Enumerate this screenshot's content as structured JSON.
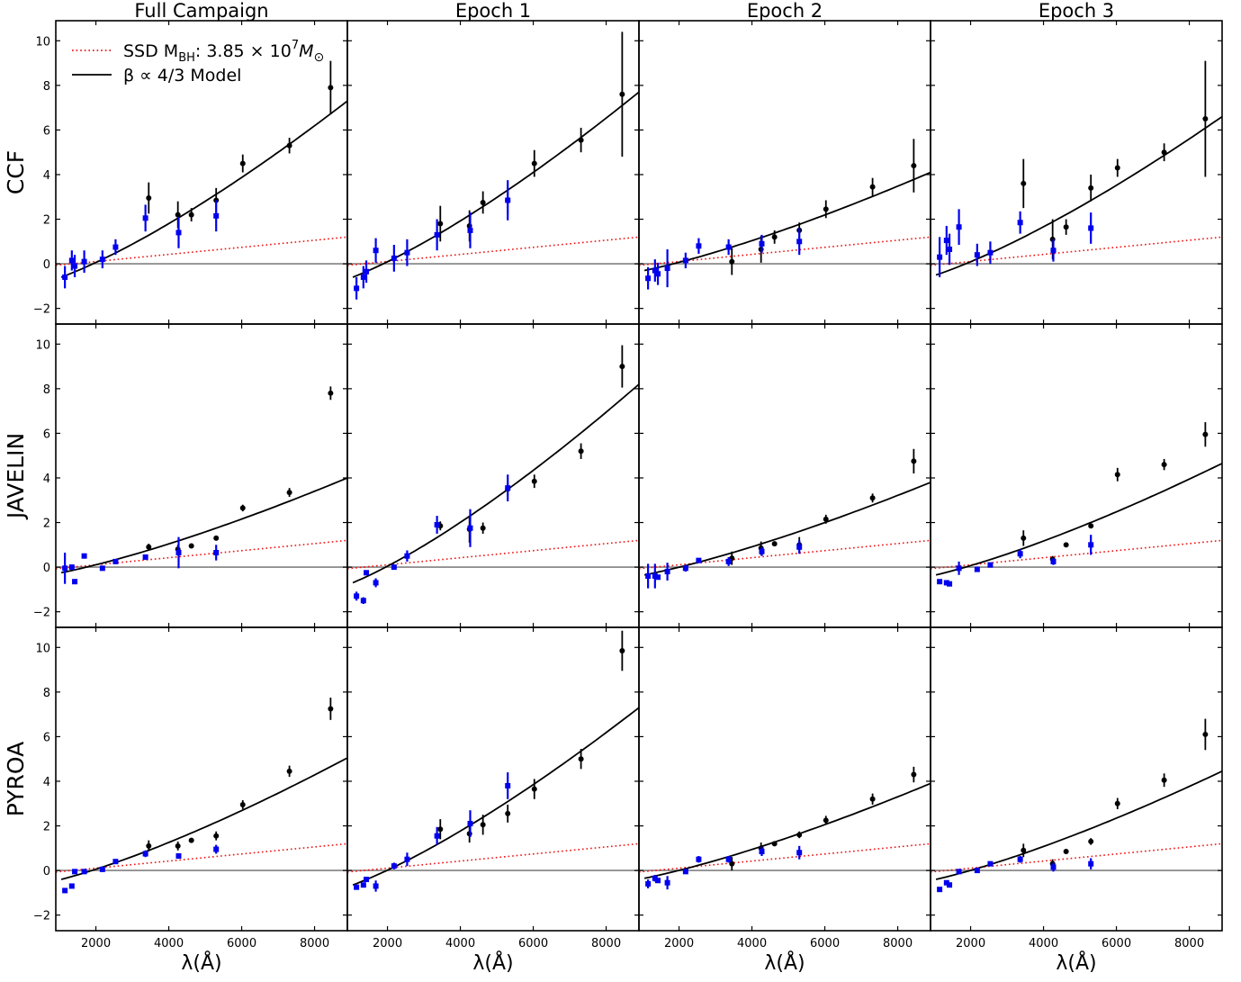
{
  "chart_data": {
    "type": "scatter",
    "columns": [
      "Full Campaign",
      "Epoch 1",
      "Epoch 2",
      "Epoch 3"
    ],
    "rows": [
      "CCF",
      "JAVELIN",
      "PYROA"
    ],
    "xlabel": "λ(Å)",
    "xlim": [
      900,
      8900
    ],
    "ylim": [
      -2.7,
      10.9
    ],
    "xticks": [
      2000,
      4000,
      6000,
      8000
    ],
    "yticks": [
      -2,
      0,
      2,
      4,
      6,
      8,
      10
    ],
    "legend": {
      "placement": "top-left",
      "entries": [
        {
          "style": "dotted-red",
          "text_main": "SSD M",
          "text_sub": "BH",
          "text_mid": ": 3.85 × 10",
          "text_sup": "7",
          "text_end": "M",
          "text_end_sub": "⊙"
        },
        {
          "style": "solid-black",
          "text_main": "β ∝ 4/3 Model"
        }
      ]
    },
    "colors": {
      "black_points": "#000000",
      "blue_points": "#0000ee",
      "model": "#000000",
      "ssd": "#ee1111",
      "zero_line": "#808080"
    },
    "ssd_line": {
      "x": [
        900,
        8900
      ],
      "y": [
        -0.07,
        1.2
      ]
    },
    "panels": [
      {
        "row": 0,
        "col": 0,
        "model": {
          "x0": 1050,
          "y0": -0.6,
          "x1": 8900,
          "y1": 7.3
        },
        "black": [
          [
            3450,
            2.95,
            0.7
          ],
          [
            4250,
            2.2,
            0.6
          ],
          [
            4620,
            2.2,
            0.3
          ],
          [
            5300,
            2.85,
            0.55
          ],
          [
            6030,
            4.5,
            0.4
          ],
          [
            7310,
            5.3,
            0.35
          ],
          [
            8440,
            7.9,
            1.2
          ]
        ],
        "blue": [
          [
            1150,
            -0.6,
            0.5
          ],
          [
            1340,
            0.15,
            0.45
          ],
          [
            1420,
            -0.1,
            0.5
          ],
          [
            1680,
            0.1,
            0.5
          ],
          [
            2180,
            0.2,
            0.4
          ],
          [
            2540,
            0.75,
            0.35
          ],
          [
            3360,
            2.05,
            0.6
          ],
          [
            4270,
            1.4,
            0.7
          ],
          [
            5300,
            2.15,
            0.7
          ]
        ]
      },
      {
        "row": 0,
        "col": 1,
        "model": {
          "x0": 1050,
          "y0": -0.6,
          "x1": 8900,
          "y1": 7.7
        },
        "black": [
          [
            3450,
            1.8,
            0.8
          ],
          [
            4250,
            1.7,
            0.7
          ],
          [
            4620,
            2.75,
            0.5
          ],
          [
            5300,
            2.85,
            0.6
          ],
          [
            6030,
            4.5,
            0.6
          ],
          [
            7310,
            5.55,
            0.55
          ],
          [
            8440,
            7.6,
            2.8
          ]
        ],
        "blue": [
          [
            1150,
            -1.1,
            0.5
          ],
          [
            1340,
            -0.6,
            0.5
          ],
          [
            1420,
            -0.35,
            0.5
          ],
          [
            1680,
            0.6,
            0.55
          ],
          [
            2180,
            0.25,
            0.6
          ],
          [
            2540,
            0.5,
            0.6
          ],
          [
            3360,
            1.3,
            0.7
          ],
          [
            4270,
            1.5,
            0.8
          ],
          [
            5300,
            2.85,
            0.9
          ]
        ]
      },
      {
        "row": 0,
        "col": 2,
        "model": {
          "x0": 1050,
          "y0": -0.3,
          "x1": 8900,
          "y1": 4.1
        },
        "black": [
          [
            3450,
            0.1,
            0.6
          ],
          [
            4250,
            0.65,
            0.6
          ],
          [
            4620,
            1.2,
            0.3
          ],
          [
            5300,
            1.5,
            0.35
          ],
          [
            6030,
            2.45,
            0.4
          ],
          [
            7310,
            3.45,
            0.4
          ],
          [
            8440,
            4.4,
            1.2
          ]
        ],
        "blue": [
          [
            1150,
            -0.65,
            0.5
          ],
          [
            1340,
            -0.3,
            0.5
          ],
          [
            1420,
            -0.45,
            0.5
          ],
          [
            1680,
            -0.2,
            0.85
          ],
          [
            2180,
            0.15,
            0.35
          ],
          [
            2540,
            0.8,
            0.35
          ],
          [
            3360,
            0.75,
            0.35
          ],
          [
            4270,
            0.9,
            0.4
          ],
          [
            5300,
            1.0,
            0.6
          ]
        ]
      },
      {
        "row": 0,
        "col": 3,
        "model": {
          "x0": 1050,
          "y0": -0.5,
          "x1": 8900,
          "y1": 6.6
        },
        "black": [
          [
            3450,
            3.6,
            1.1
          ],
          [
            4250,
            1.1,
            0.9
          ],
          [
            4620,
            1.65,
            0.35
          ],
          [
            5300,
            3.4,
            0.6
          ],
          [
            6030,
            4.3,
            0.4
          ],
          [
            7310,
            5.0,
            0.4
          ],
          [
            8440,
            6.5,
            2.6
          ]
        ],
        "blue": [
          [
            1150,
            0.3,
            0.9
          ],
          [
            1340,
            1.05,
            0.65
          ],
          [
            1420,
            0.65,
            0.7
          ],
          [
            1680,
            1.65,
            0.8
          ],
          [
            2180,
            0.4,
            0.5
          ],
          [
            2540,
            0.5,
            0.5
          ],
          [
            3360,
            1.85,
            0.5
          ],
          [
            4270,
            0.6,
            0.5
          ],
          [
            5300,
            1.6,
            0.7
          ]
        ]
      },
      {
        "row": 1,
        "col": 0,
        "model": {
          "x0": 1050,
          "y0": -0.25,
          "x1": 8900,
          "y1": 4.0
        },
        "black": [
          [
            3450,
            0.9,
            0.15
          ],
          [
            4250,
            0.8,
            0.2
          ],
          [
            4620,
            0.95,
            0.1
          ],
          [
            5300,
            1.3,
            0.1
          ],
          [
            6030,
            2.65,
            0.15
          ],
          [
            7310,
            3.35,
            0.2
          ],
          [
            8440,
            7.8,
            0.3
          ]
        ],
        "blue": [
          [
            1150,
            -0.05,
            0.7
          ],
          [
            1340,
            0.0,
            0.1
          ],
          [
            1420,
            -0.65,
            0.1
          ],
          [
            1680,
            0.5,
            0.1
          ],
          [
            2180,
            -0.05,
            0.1
          ],
          [
            2540,
            0.25,
            0.1
          ],
          [
            3360,
            0.45,
            0.1
          ],
          [
            4270,
            0.65,
            0.7
          ],
          [
            5300,
            0.65,
            0.35
          ]
        ]
      },
      {
        "row": 1,
        "col": 1,
        "model": {
          "x0": 1050,
          "y0": -0.7,
          "x1": 8900,
          "y1": 8.2
        },
        "black": [
          [
            3450,
            1.85,
            0.2
          ],
          [
            4250,
            1.7,
            0.6
          ],
          [
            4620,
            1.75,
            0.25
          ],
          [
            5300,
            3.5,
            0.3
          ],
          [
            6030,
            3.85,
            0.3
          ],
          [
            7310,
            5.2,
            0.35
          ],
          [
            8440,
            9.0,
            0.95
          ]
        ],
        "blue": [
          [
            1150,
            -1.3,
            0.2
          ],
          [
            1340,
            -1.5,
            0.15
          ],
          [
            1420,
            -0.25,
            0.1
          ],
          [
            1680,
            -0.7,
            0.2
          ],
          [
            2180,
            0.0,
            0.1
          ],
          [
            2540,
            0.5,
            0.25
          ],
          [
            3360,
            1.9,
            0.4
          ],
          [
            4270,
            1.75,
            0.85
          ],
          [
            5300,
            3.55,
            0.6
          ]
        ]
      },
      {
        "row": 1,
        "col": 2,
        "model": {
          "x0": 1050,
          "y0": -0.35,
          "x1": 8900,
          "y1": 3.8
        },
        "black": [
          [
            3450,
            0.4,
            0.3
          ],
          [
            4250,
            0.85,
            0.3
          ],
          [
            4620,
            1.05,
            0.1
          ],
          [
            5300,
            1.0,
            0.35
          ],
          [
            6030,
            2.15,
            0.2
          ],
          [
            7310,
            3.1,
            0.2
          ],
          [
            8440,
            4.75,
            0.55
          ]
        ],
        "blue": [
          [
            1150,
            -0.4,
            0.55
          ],
          [
            1340,
            -0.4,
            0.55
          ],
          [
            1420,
            -0.45,
            0.1
          ],
          [
            1680,
            -0.2,
            0.4
          ],
          [
            2180,
            -0.05,
            0.15
          ],
          [
            2540,
            0.3,
            0.1
          ],
          [
            3360,
            0.25,
            0.2
          ],
          [
            4270,
            0.7,
            0.2
          ],
          [
            5300,
            0.9,
            0.3
          ]
        ]
      },
      {
        "row": 1,
        "col": 3,
        "model": {
          "x0": 1050,
          "y0": -0.35,
          "x1": 8900,
          "y1": 4.65
        },
        "black": [
          [
            3450,
            1.3,
            0.35
          ],
          [
            4250,
            0.35,
            0.15
          ],
          [
            4620,
            1.0,
            0.1
          ],
          [
            5300,
            1.85,
            0.1
          ],
          [
            6030,
            4.15,
            0.3
          ],
          [
            7310,
            4.6,
            0.25
          ],
          [
            8440,
            5.95,
            0.55
          ]
        ],
        "blue": [
          [
            1150,
            -0.65,
            0.1
          ],
          [
            1340,
            -0.7,
            0.1
          ],
          [
            1420,
            -0.75,
            0.1
          ],
          [
            1680,
            -0.05,
            0.3
          ],
          [
            2180,
            -0.1,
            0.1
          ],
          [
            2540,
            0.1,
            0.1
          ],
          [
            3360,
            0.6,
            0.2
          ],
          [
            4270,
            0.25,
            0.15
          ],
          [
            5300,
            1.0,
            0.45
          ]
        ]
      },
      {
        "row": 2,
        "col": 0,
        "model": {
          "x0": 1050,
          "y0": -0.4,
          "x1": 8900,
          "y1": 5.05
        },
        "black": [
          [
            3450,
            1.1,
            0.25
          ],
          [
            4250,
            1.1,
            0.2
          ],
          [
            4620,
            1.35,
            0.1
          ],
          [
            5300,
            1.55,
            0.2
          ],
          [
            6030,
            2.95,
            0.2
          ],
          [
            7310,
            4.45,
            0.25
          ],
          [
            8440,
            7.25,
            0.5
          ]
        ],
        "blue": [
          [
            1150,
            -0.9,
            0.1
          ],
          [
            1340,
            -0.7,
            0.1
          ],
          [
            1420,
            -0.05,
            0.1
          ],
          [
            1680,
            -0.05,
            0.1
          ],
          [
            2180,
            0.05,
            0.1
          ],
          [
            2540,
            0.4,
            0.1
          ],
          [
            3360,
            0.75,
            0.15
          ],
          [
            4270,
            0.65,
            0.1
          ],
          [
            5300,
            0.95,
            0.2
          ]
        ]
      },
      {
        "row": 2,
        "col": 1,
        "model": {
          "x0": 1050,
          "y0": -0.65,
          "x1": 8900,
          "y1": 7.3
        },
        "black": [
          [
            3450,
            1.85,
            0.45
          ],
          [
            4250,
            1.65,
            0.4
          ],
          [
            4620,
            2.05,
            0.45
          ],
          [
            5300,
            2.55,
            0.4
          ],
          [
            6030,
            3.65,
            0.45
          ],
          [
            7310,
            5.0,
            0.45
          ],
          [
            8440,
            9.85,
            0.9
          ]
        ],
        "blue": [
          [
            1150,
            -0.75,
            0.1
          ],
          [
            1340,
            -0.65,
            0.1
          ],
          [
            1420,
            -0.4,
            0.1
          ],
          [
            1680,
            -0.7,
            0.25
          ],
          [
            2180,
            0.2,
            0.15
          ],
          [
            2540,
            0.5,
            0.3
          ],
          [
            3360,
            1.55,
            0.4
          ],
          [
            4270,
            2.1,
            0.6
          ],
          [
            5300,
            3.8,
            0.6
          ]
        ]
      },
      {
        "row": 2,
        "col": 2,
        "model": {
          "x0": 1050,
          "y0": -0.35,
          "x1": 8900,
          "y1": 3.9
        },
        "black": [
          [
            3450,
            0.3,
            0.3
          ],
          [
            4250,
            1.0,
            0.25
          ],
          [
            4620,
            1.2,
            0.1
          ],
          [
            5300,
            1.6,
            0.15
          ],
          [
            6030,
            2.25,
            0.2
          ],
          [
            7310,
            3.2,
            0.25
          ],
          [
            8440,
            4.3,
            0.35
          ]
        ],
        "blue": [
          [
            1150,
            -0.6,
            0.2
          ],
          [
            1340,
            -0.35,
            0.15
          ],
          [
            1420,
            -0.45,
            0.1
          ],
          [
            1680,
            -0.55,
            0.3
          ],
          [
            2180,
            -0.05,
            0.1
          ],
          [
            2540,
            0.5,
            0.15
          ],
          [
            3360,
            0.5,
            0.15
          ],
          [
            4270,
            0.85,
            0.2
          ],
          [
            5300,
            0.8,
            0.3
          ]
        ]
      },
      {
        "row": 2,
        "col": 3,
        "model": {
          "x0": 1050,
          "y0": -0.4,
          "x1": 8900,
          "y1": 4.45
        },
        "black": [
          [
            3450,
            0.9,
            0.3
          ],
          [
            4250,
            0.3,
            0.2
          ],
          [
            4620,
            0.85,
            0.1
          ],
          [
            5300,
            1.3,
            0.15
          ],
          [
            6030,
            3.0,
            0.25
          ],
          [
            7310,
            4.05,
            0.3
          ],
          [
            8440,
            6.1,
            0.7
          ]
        ],
        "blue": [
          [
            1150,
            -0.85,
            0.1
          ],
          [
            1340,
            -0.55,
            0.1
          ],
          [
            1420,
            -0.65,
            0.1
          ],
          [
            1680,
            -0.05,
            0.1
          ],
          [
            2180,
            0.0,
            0.1
          ],
          [
            2540,
            0.3,
            0.1
          ],
          [
            3360,
            0.5,
            0.15
          ],
          [
            4270,
            0.15,
            0.2
          ],
          [
            5300,
            0.3,
            0.25
          ]
        ]
      }
    ]
  }
}
